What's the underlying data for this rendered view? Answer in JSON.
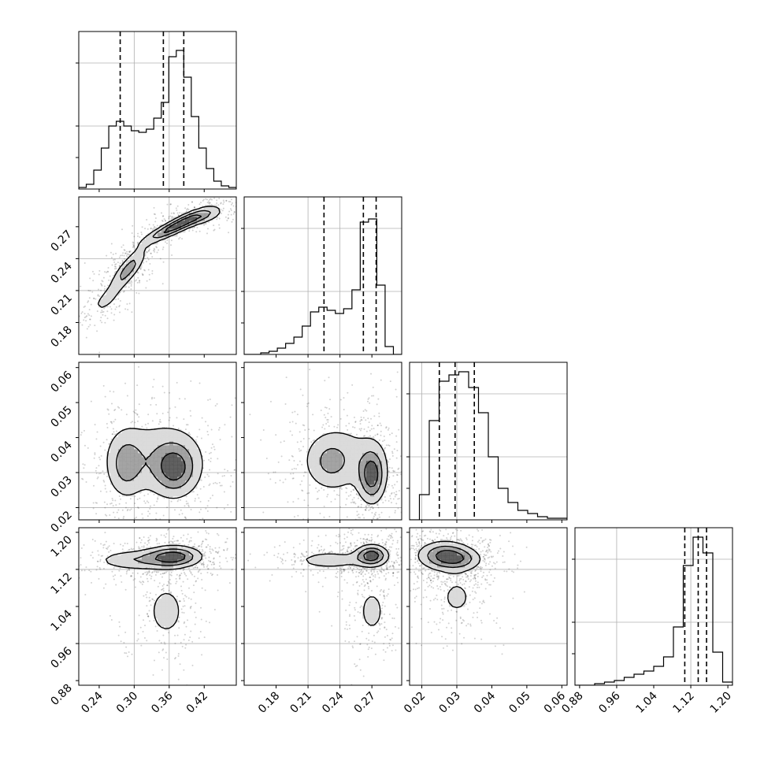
{
  "chart_data": {
    "type": "corner",
    "params": [
      {
        "range": [
          0.205,
          0.475
        ],
        "ticks": [
          "0.24",
          "0.30",
          "0.36",
          "0.42"
        ],
        "quantiles": [
          0.276,
          0.35,
          0.385
        ],
        "hist": [
          0.01,
          0.03,
          0.12,
          0.26,
          0.4,
          0.43,
          0.4,
          0.37,
          0.36,
          0.38,
          0.45,
          0.55,
          0.84,
          0.88,
          0.71,
          0.46,
          0.26,
          0.13,
          0.05,
          0.02,
          0.01
        ],
        "grid": [
          0.3,
          0.36
        ]
      },
      {
        "range": [
          0.15,
          0.298
        ],
        "ticks": [
          "0.18",
          "0.21",
          "0.24",
          "0.27"
        ],
        "quantiles": [
          0.225,
          0.262,
          0.274
        ],
        "hist": [
          0.0,
          0.0,
          0.01,
          0.02,
          0.04,
          0.07,
          0.11,
          0.18,
          0.27,
          0.3,
          0.28,
          0.26,
          0.29,
          0.41,
          0.84,
          0.86,
          0.44,
          0.05,
          0.0
        ],
        "grid": [
          0.21,
          0.24
        ]
      },
      {
        "range": [
          0.0165,
          0.0615
        ],
        "ticks": [
          "0.02",
          "0.03",
          "0.04",
          "0.05",
          "0.06"
        ],
        "quantiles": [
          0.025,
          0.0295,
          0.035
        ],
        "hist": [
          0.0,
          0.16,
          0.63,
          0.88,
          0.92,
          0.94,
          0.84,
          0.68,
          0.4,
          0.2,
          0.11,
          0.06,
          0.04,
          0.02,
          0.01,
          0.01
        ],
        "grid": [
          0.02,
          0.03
        ]
      },
      {
        "range": [
          0.87,
          1.21
        ],
        "ticks": [
          "0.88",
          "0.96",
          "1.04",
          "1.12",
          "1.20"
        ],
        "quantiles": [
          1.107,
          1.136,
          1.154
        ],
        "hist": [
          0.0,
          0.0,
          0.01,
          0.02,
          0.03,
          0.05,
          0.07,
          0.09,
          0.12,
          0.18,
          0.37,
          0.76,
          0.94,
          0.84,
          0.21,
          0.02
        ],
        "grid": [
          0.96,
          1.12
        ]
      }
    ],
    "clusters": {
      "1_0": [
        [
          0.37,
          0.27,
          0.035,
          0.01,
          0.9,
          1.5
        ],
        [
          0.29,
          0.23,
          0.02,
          0.013,
          0.8,
          1.1
        ],
        [
          0.25,
          0.2,
          0.02,
          0.01,
          0.6,
          0.5
        ],
        [
          0.42,
          0.28,
          0.025,
          0.006,
          0.5,
          0.7
        ]
      ],
      "2_0": [
        [
          0.37,
          0.031,
          0.025,
          0.005,
          0.0,
          1.4
        ],
        [
          0.285,
          0.032,
          0.02,
          0.006,
          0.0,
          1.0
        ],
        [
          0.34,
          0.035,
          0.06,
          0.008,
          0.0,
          0.8
        ]
      ],
      "3_0": [
        [
          0.37,
          1.148,
          0.03,
          0.015,
          0.0,
          1.4
        ],
        [
          0.3,
          1.14,
          0.045,
          0.015,
          0.0,
          0.8
        ],
        [
          0.355,
          1.03,
          0.022,
          0.04,
          0.0,
          0.7
        ]
      ],
      "2_1": [
        [
          0.27,
          0.029,
          0.008,
          0.005,
          0.0,
          1.5
        ],
        [
          0.23,
          0.033,
          0.015,
          0.005,
          0.0,
          0.8
        ],
        [
          0.25,
          0.035,
          0.03,
          0.008,
          0.0,
          0.5
        ]
      ],
      "3_1": [
        [
          0.27,
          1.15,
          0.01,
          0.015,
          0.0,
          1.5
        ],
        [
          0.23,
          1.14,
          0.02,
          0.012,
          0.0,
          0.8
        ],
        [
          0.27,
          1.03,
          0.01,
          0.04,
          0.0,
          0.6
        ]
      ],
      "3_2": [
        [
          0.0265,
          1.15,
          0.005,
          0.02,
          0.0,
          1.5
        ],
        [
          0.032,
          1.14,
          0.004,
          0.015,
          0.0,
          0.6
        ],
        [
          0.03,
          1.06,
          0.004,
          0.035,
          0.0,
          0.6
        ]
      ]
    },
    "contour_levels": [
      0.28,
      0.55,
      0.8
    ]
  }
}
